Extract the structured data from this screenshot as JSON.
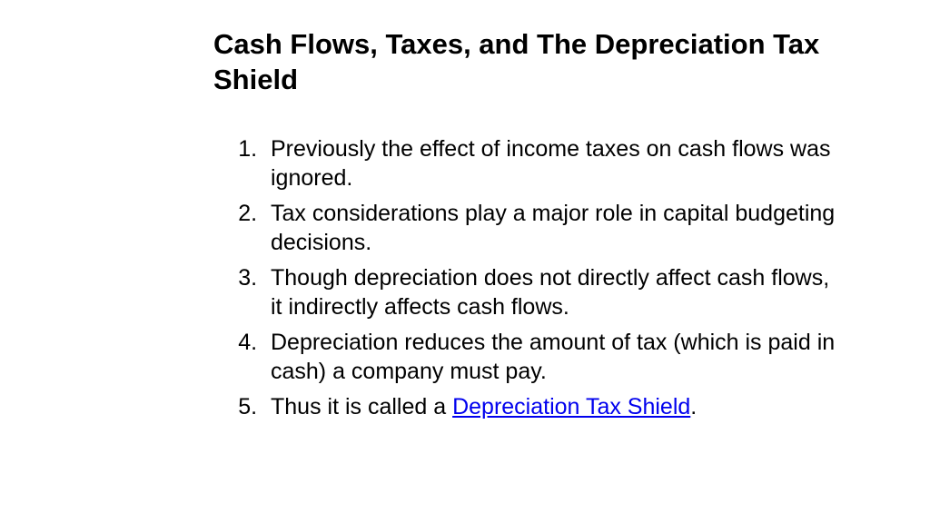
{
  "slide": {
    "title": "Cash Flows, Taxes, and The Depreciation Tax Shield",
    "items": [
      {
        "text": "Previously the effect of income taxes on cash flows was ignored."
      },
      {
        "text": "Tax considerations play a major role in capital budgeting decisions."
      },
      {
        "text": "Though depreciation does not directly affect cash flows, it indirectly affects cash flows."
      },
      {
        "text": "Depreciation reduces the amount of tax (which is paid in cash) a company must pay."
      },
      {
        "prefix": "Thus it is called a ",
        "link": "Depreciation Tax Shield",
        "suffix": "."
      }
    ],
    "colors": {
      "background": "#ffffff",
      "text": "#000000",
      "link": "#0000ee"
    },
    "typography": {
      "title_fontsize": 31,
      "title_weight": "bold",
      "body_fontsize": 25,
      "font_family": "Arial, Helvetica, sans-serif"
    }
  }
}
